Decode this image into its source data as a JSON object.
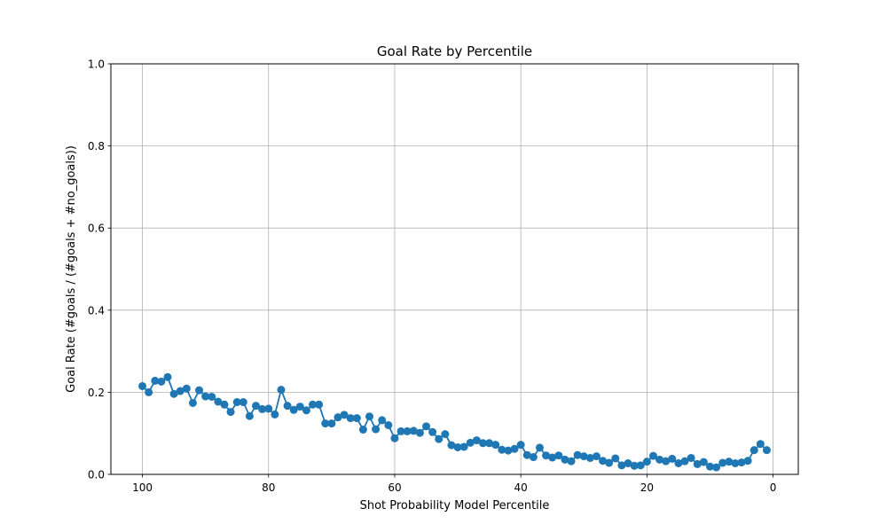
{
  "chart_data": {
    "type": "line",
    "title": "Goal Rate by Percentile",
    "xlabel": "Shot Probability Model Percentile",
    "ylabel": "Goal Rate (#goals / (#goals + #no_goals))",
    "xlim": [
      105,
      -4
    ],
    "ylim": [
      0.0,
      1.0
    ],
    "x_inverted": true,
    "grid": true,
    "x_ticks": [
      100,
      80,
      60,
      40,
      20,
      0
    ],
    "x_tick_labels": [
      "100",
      "80",
      "60",
      "40",
      "20",
      "0"
    ],
    "y_ticks": [
      0.0,
      0.2,
      0.4,
      0.6,
      0.8,
      1.0
    ],
    "y_tick_labels": [
      "0.0",
      "0.2",
      "0.4",
      "0.6",
      "0.8",
      "1.0"
    ],
    "series": [
      {
        "color": "#1f77b4",
        "marker": "circle",
        "x": [
          100,
          99,
          98,
          97,
          96,
          95,
          94,
          93,
          92,
          91,
          90,
          89,
          88,
          87,
          86,
          85,
          84,
          83,
          82,
          81,
          80,
          79,
          78,
          77,
          76,
          75,
          74,
          73,
          72,
          71,
          70,
          69,
          68,
          67,
          66,
          65,
          64,
          63,
          62,
          61,
          60,
          59,
          58,
          57,
          56,
          55,
          54,
          53,
          52,
          51,
          50,
          49,
          48,
          47,
          46,
          45,
          44,
          43,
          42,
          41,
          40,
          39,
          38,
          37,
          36,
          35,
          34,
          33,
          32,
          31,
          30,
          29,
          28,
          27,
          26,
          25,
          24,
          23,
          22,
          21,
          20,
          19,
          18,
          17,
          16,
          15,
          14,
          13,
          12,
          11,
          10,
          9,
          8,
          7,
          6,
          5,
          4,
          3,
          2,
          1
        ],
        "y": [
          0.215,
          0.2,
          0.228,
          0.226,
          0.237,
          0.196,
          0.203,
          0.209,
          0.174,
          0.205,
          0.19,
          0.189,
          0.177,
          0.17,
          0.152,
          0.176,
          0.176,
          0.142,
          0.167,
          0.159,
          0.16,
          0.146,
          0.206,
          0.167,
          0.157,
          0.165,
          0.156,
          0.17,
          0.17,
          0.124,
          0.124,
          0.139,
          0.145,
          0.137,
          0.137,
          0.109,
          0.141,
          0.11,
          0.132,
          0.12,
          0.088,
          0.105,
          0.105,
          0.106,
          0.101,
          0.117,
          0.103,
          0.086,
          0.098,
          0.071,
          0.066,
          0.067,
          0.077,
          0.083,
          0.076,
          0.076,
          0.072,
          0.06,
          0.058,
          0.062,
          0.072,
          0.047,
          0.042,
          0.065,
          0.046,
          0.041,
          0.046,
          0.036,
          0.032,
          0.047,
          0.044,
          0.04,
          0.044,
          0.033,
          0.028,
          0.039,
          0.022,
          0.027,
          0.021,
          0.022,
          0.031,
          0.045,
          0.036,
          0.032,
          0.038,
          0.027,
          0.032,
          0.04,
          0.025,
          0.03,
          0.019,
          0.017,
          0.028,
          0.031,
          0.027,
          0.029,
          0.033,
          0.059,
          0.074,
          0.059
        ]
      }
    ]
  }
}
